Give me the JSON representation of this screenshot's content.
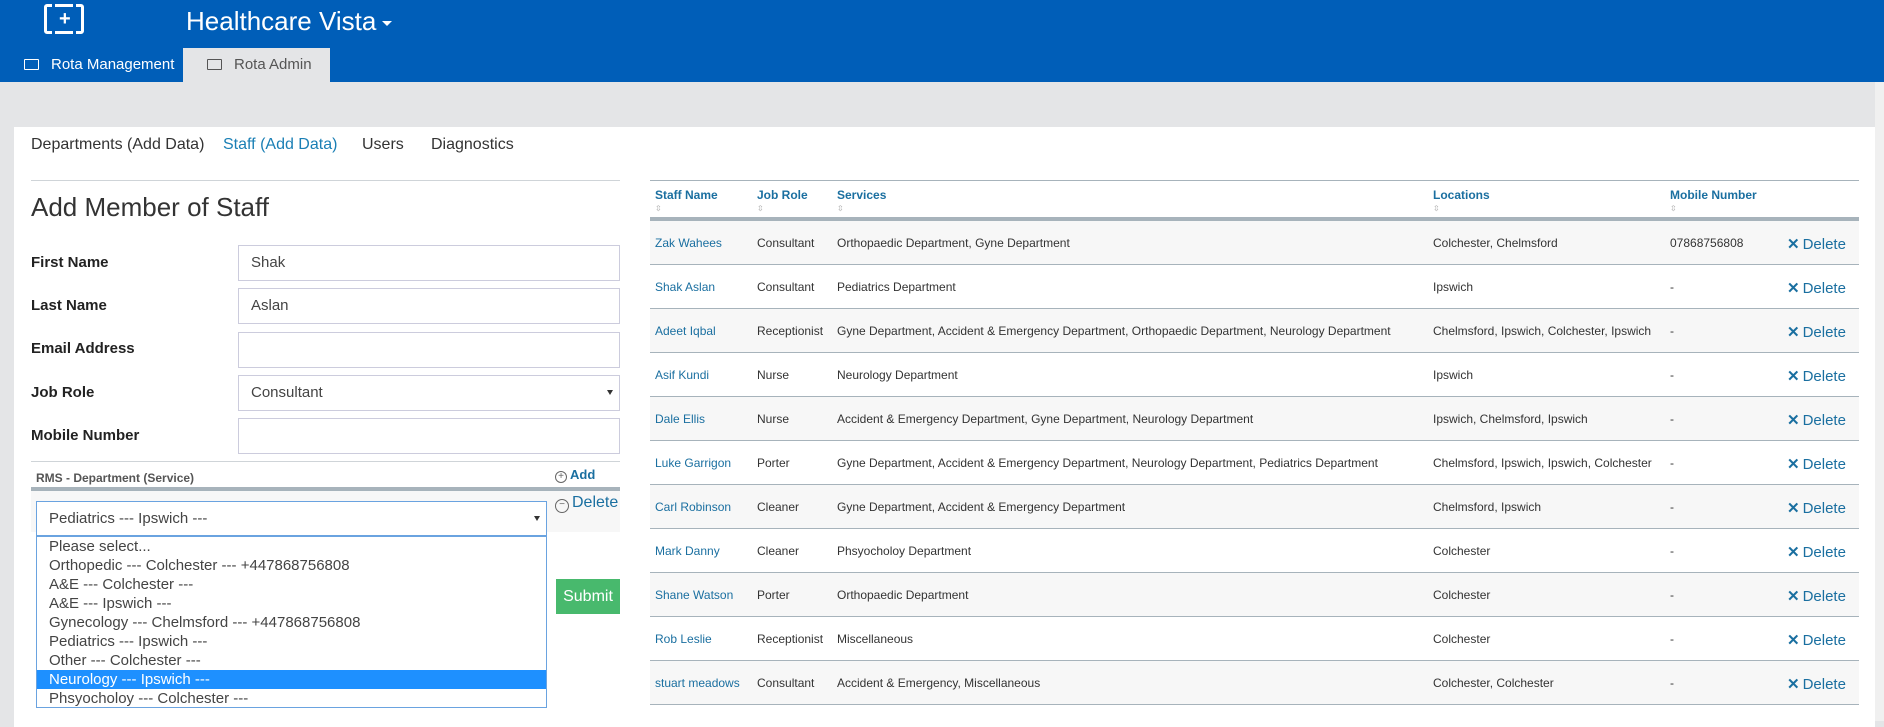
{
  "app": {
    "title": "Healthcare Vista",
    "logo": "medical-kit-logo"
  },
  "tabs": [
    {
      "label": "Rota Management",
      "icon": "folder-icon",
      "active": false
    },
    {
      "label": "Rota Admin",
      "icon": "folder-icon",
      "active": true
    }
  ],
  "subnav": [
    {
      "label": "Departments (Add Data)"
    },
    {
      "label": "Staff (Add Data)",
      "active": true
    },
    {
      "label": "Users"
    },
    {
      "label": "Diagnostics"
    }
  ],
  "form": {
    "heading": "Add Member of Staff",
    "first_name": {
      "label": "First Name",
      "value": "Shak"
    },
    "last_name": {
      "label": "Last Name",
      "value": "Aslan"
    },
    "email": {
      "label": "Email Address",
      "value": ""
    },
    "job_role": {
      "label": "Job Role",
      "value": "Consultant"
    },
    "mobile": {
      "label": "Mobile Number",
      "value": ""
    },
    "rms_label": "RMS - Department (Service)",
    "add_label": "Add",
    "delete_label": "Delete",
    "department_select": {
      "value": "Pediatrics --- Ipswich ---",
      "options": [
        "Please select...",
        "Orthopedic --- Colchester --- +447868756808",
        "A&E --- Colchester ---",
        "A&E --- Ipswich ---",
        "Gynecology --- Chelmsford --- +447868756808",
        "Pediatrics --- Ipswich ---",
        "Other --- Colchester ---",
        "Neurology --- Ipswich ---",
        "Phsyocholoy --- Colchester ---"
      ],
      "highlighted": "Neurology --- Ipswich ---"
    },
    "submit_label": "Submit"
  },
  "table": {
    "columns": [
      "Staff Name",
      "Job Role",
      "Services",
      "Locations",
      "Mobile Number"
    ],
    "delete_label": "Delete",
    "rows": [
      [
        "Zak Wahees",
        "Consultant",
        "Orthopaedic Department, Gyne Department",
        "Colchester, Chelmsford",
        "07868756808"
      ],
      [
        "Shak Aslan",
        "Consultant",
        "Pediatrics Department",
        "Ipswich",
        "-"
      ],
      [
        "Adeet Iqbal",
        "Receptionist",
        "Gyne Department, Accident & Emergency Department, Orthopaedic Department, Neurology Department",
        "Chelmsford, Ipswich, Colchester, Ipswich",
        "-"
      ],
      [
        "Asif Kundi",
        "Nurse",
        "Neurology Department",
        "Ipswich",
        "-"
      ],
      [
        "Dale Ellis",
        "Nurse",
        "Accident & Emergency Department, Gyne Department, Neurology Department",
        "Ipswich, Chelmsford, Ipswich",
        "-"
      ],
      [
        "Luke Garrigon",
        "Porter",
        "Gyne Department, Accident & Emergency Department, Neurology Department, Pediatrics Department",
        "Chelmsford, Ipswich, Ipswich, Colchester",
        "-"
      ],
      [
        "Carl Robinson",
        "Cleaner",
        "Gyne Department, Accident & Emergency Department",
        "Chelmsford, Ipswich",
        "-"
      ],
      [
        "Mark Danny",
        "Cleaner",
        "Phsyocholoy Department",
        "Colchester",
        "-"
      ],
      [
        "Shane Watson",
        "Porter",
        "Orthopaedic Department",
        "Colchester",
        "-"
      ],
      [
        "Rob Leslie",
        "Receptionist",
        "Miscellaneous",
        "Colchester",
        "-"
      ],
      [
        "stuart meadows",
        "Consultant",
        "Accident & Emergency, Miscellaneous",
        "Colchester, Colchester",
        "-"
      ]
    ]
  },
  "colors": {
    "header": "#005eb8",
    "link": "#1a6fa0",
    "submit": "#48b96d",
    "highlight": "#1e90ff"
  }
}
